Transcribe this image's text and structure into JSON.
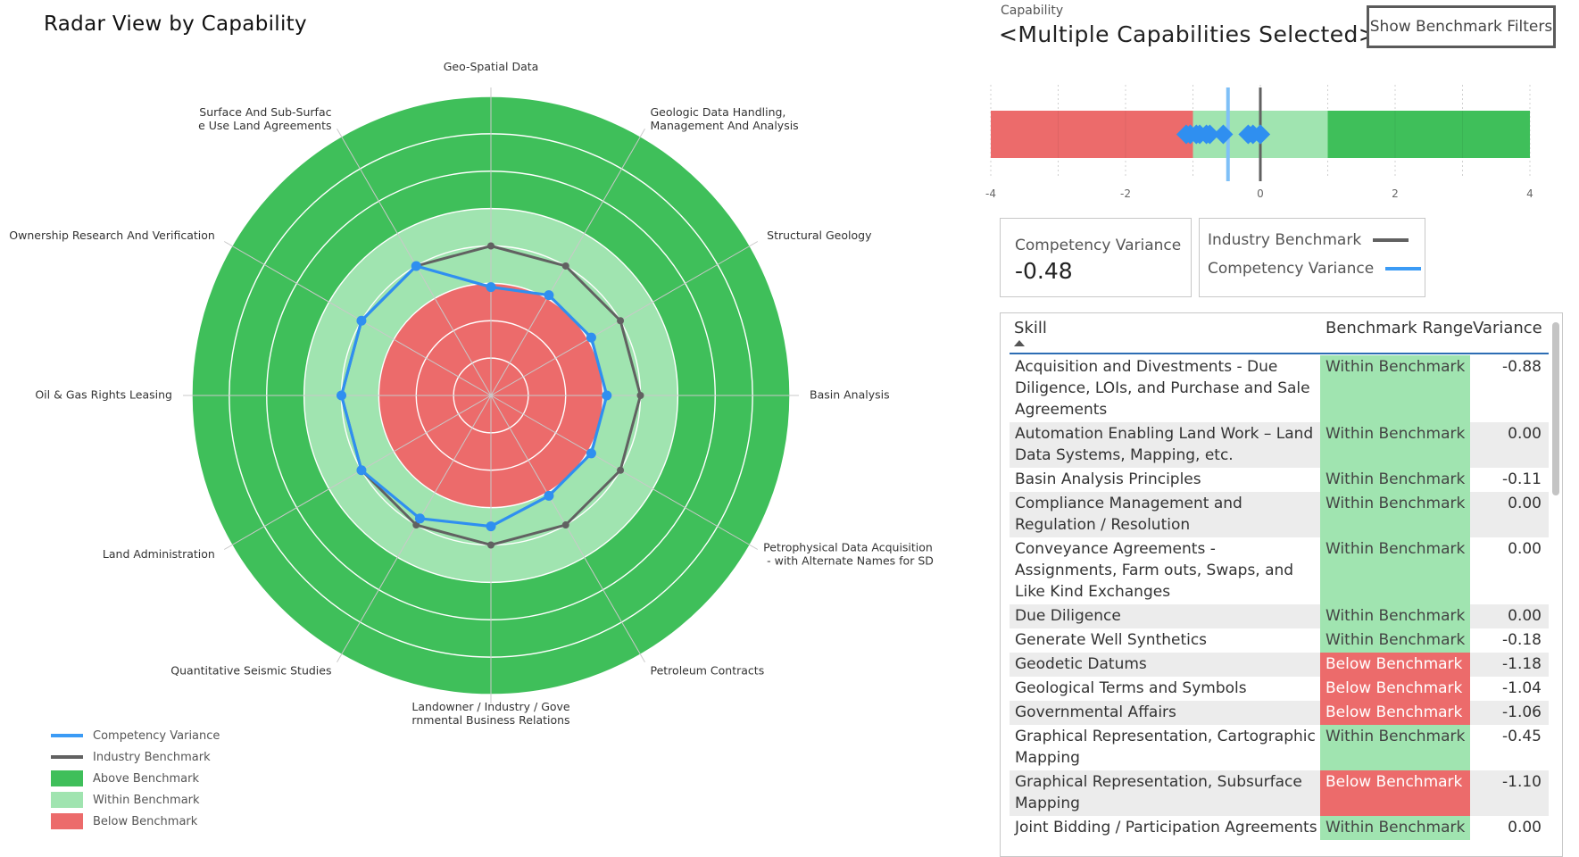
{
  "page": {
    "title": "Radar View by Capability",
    "capability_caption": "Capability",
    "capability_value": "<Multiple Capabilities Selected>",
    "filter_button": "Show Benchmark Filters"
  },
  "radar": {
    "axes": [
      "Geo-Spatial Data",
      "Geologic Data Handling, Management And Analysis",
      "Structural Geology",
      "Basin Analysis",
      "Petrophysical Data Acquisition - with Alternate Names for SD",
      "Petroleum Contracts",
      "Landowner / Industry / Governmental Business Relations",
      "Quantitative Seismic Studies",
      "Land Administration",
      "Oil & Gas Rights Leasing",
      "Ownership Research And Verification",
      "Surface And Sub-Surface Use Land Agreements"
    ],
    "axis_labels": [
      [
        "Geo-Spatial Data"
      ],
      [
        "Geologic Data Handling,",
        "Management And Analysis"
      ],
      [
        "Structural Geology"
      ],
      [
        "Basin Analysis"
      ],
      [
        "Petrophysical Data Acquisition",
        " - with Alternate Names for SD"
      ],
      [
        "Petroleum Contracts"
      ],
      [
        "Landowner / Industry / Gove",
        "rnmental Business Relations"
      ],
      [
        "Quantitative Seismic Studies"
      ],
      [
        "Land Administration"
      ],
      [
        "Oil & Gas Rights Leasing"
      ],
      [
        "Ownership Research And Verification"
      ],
      [
        "Surface And Sub-Surfac",
        "e Use Land Agreements"
      ]
    ],
    "scale_max": 4,
    "ring_count": 8,
    "bands": {
      "below_max": 1.5,
      "within_max": 2.5
    },
    "series": [
      {
        "name": "Industry Benchmark",
        "color": "#616161",
        "values": [
          2,
          2,
          2,
          2,
          2,
          2,
          2,
          2,
          2,
          2,
          2,
          2
        ]
      },
      {
        "name": "Competency Variance",
        "color": "#2f8ff0",
        "values": [
          1.45,
          1.55,
          1.55,
          1.55,
          1.55,
          1.55,
          1.75,
          1.9,
          2.0,
          2.0,
          2.0,
          2.0
        ]
      }
    ]
  },
  "legend": [
    {
      "label": "Competency Variance",
      "kind": "line",
      "color": "#3b9bf5"
    },
    {
      "label": "Industry Benchmark",
      "kind": "line",
      "color": "#616161"
    },
    {
      "label": "Above Benchmark",
      "kind": "box",
      "color": "#3fbf5a"
    },
    {
      "label": "Within Benchmark",
      "kind": "box",
      "color": "#a0e4b0"
    },
    {
      "label": "Below Benchmark",
      "kind": "box",
      "color": "#ec6b6b"
    }
  ],
  "chart_data": {
    "type": "bar",
    "x_range": [
      -4,
      4
    ],
    "ticks": [
      "-4",
      "-2",
      "0",
      "2",
      "4"
    ],
    "bands": [
      {
        "label": "Below Benchmark",
        "from": -4,
        "to": -1,
        "color": "#ec6b6b"
      },
      {
        "label": "Within Benchmark",
        "from": -1,
        "to": 1,
        "color": "#a0e4b0"
      },
      {
        "label": "Above Benchmark",
        "from": 1,
        "to": 4,
        "color": "#3fbf5a"
      }
    ],
    "industry_benchmark": 0,
    "competency_variance": -0.48,
    "points": [
      -1.1,
      -1.04,
      -0.95,
      -0.9,
      -0.8,
      -0.75,
      -0.55,
      -0.18,
      -0.11,
      0,
      0
    ]
  },
  "kpi": {
    "label": "Competency Variance",
    "value": "-0.48"
  },
  "line_legend": [
    {
      "label": "Industry Benchmark",
      "color": "#616161"
    },
    {
      "label": "Competency Variance",
      "color": "#3b9bf5"
    }
  ],
  "table": {
    "headers": {
      "skill": "Skill",
      "range": "Benchmark Range",
      "variance": "Variance"
    },
    "rows": [
      {
        "skill": "Acquisition and Divestments - Due Diligence, LOIs, and Purchase and Sale Agreements",
        "range": "Within Benchmark",
        "status": "within",
        "variance": "-0.88"
      },
      {
        "skill": "Automation Enabling Land Work – Land Data Systems, Mapping, etc.",
        "range": "Within Benchmark",
        "status": "within",
        "variance": "0.00"
      },
      {
        "skill": "Basin Analysis Principles",
        "range": "Within Benchmark",
        "status": "within",
        "variance": "-0.11"
      },
      {
        "skill": "Compliance Management and Regulation / Resolution",
        "range": "Within Benchmark",
        "status": "within",
        "variance": "0.00"
      },
      {
        "skill": "Conveyance Agreements - Assignments, Farm outs, Swaps, and Like Kind Exchanges",
        "range": "Within Benchmark",
        "status": "within",
        "variance": "0.00"
      },
      {
        "skill": "Due Diligence",
        "range": "Within Benchmark",
        "status": "within",
        "variance": "0.00"
      },
      {
        "skill": "Generate Well Synthetics",
        "range": "Within Benchmark",
        "status": "within",
        "variance": "-0.18"
      },
      {
        "skill": "Geodetic Datums",
        "range": "Below Benchmark",
        "status": "below",
        "variance": "-1.18"
      },
      {
        "skill": "Geological Terms and Symbols",
        "range": "Below Benchmark",
        "status": "below",
        "variance": "-1.04"
      },
      {
        "skill": "Governmental Affairs",
        "range": "Below Benchmark",
        "status": "below",
        "variance": "-1.06"
      },
      {
        "skill": "Graphical Representation, Cartographic Mapping",
        "range": "Within Benchmark",
        "status": "within",
        "variance": "-0.45"
      },
      {
        "skill": "Graphical Representation, Subsurface Mapping",
        "range": "Below Benchmark",
        "status": "below",
        "variance": "-1.10"
      },
      {
        "skill": "Joint Bidding / Participation Agreements",
        "range": "Within Benchmark",
        "status": "within",
        "variance": "0.00"
      }
    ]
  },
  "colors": {
    "above": "#3fbf5a",
    "within": "#a0e4b0",
    "below": "#ec6b6b",
    "benchmark": "#616161",
    "competency": "#2f8ff0"
  }
}
